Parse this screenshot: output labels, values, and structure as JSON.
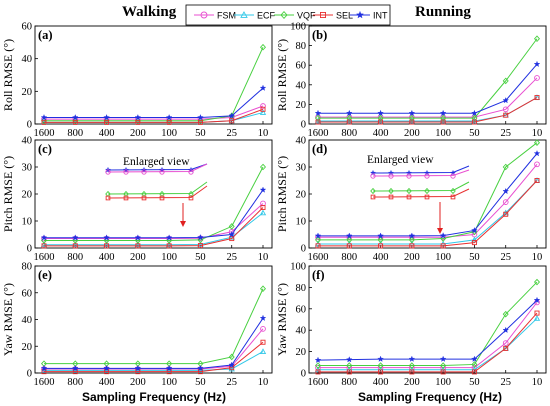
{
  "headers": {
    "left": "Walking",
    "right": "Running"
  },
  "legend": [
    {
      "name": "FSM",
      "color": "#e84fd0",
      "marker": "circle"
    },
    {
      "name": "ECF",
      "color": "#32c8e8",
      "marker": "triangle"
    },
    {
      "name": "VQF",
      "color": "#48d040",
      "marker": "diamond"
    },
    {
      "name": "SEL",
      "color": "#e83030",
      "marker": "square"
    },
    {
      "name": "INT",
      "color": "#2030e0",
      "marker": "star"
    }
  ],
  "xlabel": "Sampling Frequency (Hz)",
  "enlarged_view_label": "Enlarged view",
  "chart_data": [
    {
      "id": "a",
      "label": "(a)",
      "type": "line",
      "ylabel": "Roll RMSE (°)",
      "categories": [
        "1600",
        "800",
        "400",
        "200",
        "100",
        "50",
        "25",
        "10"
      ],
      "ylim": [
        0,
        60
      ],
      "yticks": [
        0,
        20,
        40,
        60
      ],
      "series": [
        {
          "name": "FSM",
          "values": [
            3,
            3,
            3,
            3,
            3,
            3,
            4,
            11
          ]
        },
        {
          "name": "ECF",
          "values": [
            1,
            1,
            1,
            1,
            1,
            1,
            2,
            7
          ]
        },
        {
          "name": "VQF",
          "values": [
            2,
            2,
            2,
            2,
            2,
            2,
            5,
            47
          ]
        },
        {
          "name": "SEL",
          "values": [
            1,
            1,
            1,
            1,
            1,
            1,
            2,
            9
          ]
        },
        {
          "name": "INT",
          "values": [
            4,
            4,
            4,
            4,
            4,
            4,
            5,
            22
          ]
        }
      ]
    },
    {
      "id": "b",
      "label": "(b)",
      "type": "line",
      "ylabel": "Roll RMSE (°)",
      "categories": [
        "1600",
        "800",
        "400",
        "200",
        "100",
        "50",
        "25",
        "10"
      ],
      "ylim": [
        0,
        100
      ],
      "yticks": [
        0,
        20,
        40,
        60,
        80,
        100
      ],
      "series": [
        {
          "name": "FSM",
          "values": [
            7,
            7,
            7,
            7,
            7,
            7,
            15,
            47
          ]
        },
        {
          "name": "ECF",
          "values": [
            3,
            3,
            3,
            3,
            3,
            3,
            9,
            27
          ]
        },
        {
          "name": "VQF",
          "values": [
            6,
            6,
            6,
            6,
            6,
            6,
            44,
            87
          ]
        },
        {
          "name": "SEL",
          "values": [
            2,
            2,
            2,
            2,
            2,
            2,
            9,
            27
          ]
        },
        {
          "name": "INT",
          "values": [
            11,
            11,
            11,
            11,
            11,
            11,
            24,
            61
          ]
        }
      ]
    },
    {
      "id": "c",
      "label": "(c)",
      "type": "line",
      "ylabel": "Pitch RMSE (°)",
      "categories": [
        "1600",
        "800",
        "400",
        "200",
        "100",
        "50",
        "25",
        "10"
      ],
      "ylim": [
        0,
        40
      ],
      "yticks": [
        0,
        10,
        20,
        30,
        40
      ],
      "series": [
        {
          "name": "FSM",
          "values": [
            3.5,
            3.5,
            3.5,
            3.5,
            3.5,
            3.6,
            6,
            16.5
          ]
        },
        {
          "name": "ECF",
          "values": [
            1.2,
            1.2,
            1.2,
            1.2,
            1.2,
            1.3,
            4,
            13
          ]
        },
        {
          "name": "VQF",
          "values": [
            2.8,
            2.8,
            2.8,
            2.8,
            2.8,
            3,
            8,
            30
          ]
        },
        {
          "name": "SEL",
          "values": [
            0.8,
            0.8,
            0.8,
            0.8,
            0.8,
            0.9,
            3.5,
            15
          ]
        },
        {
          "name": "INT",
          "values": [
            3.8,
            3.8,
            3.8,
            3.8,
            3.8,
            3.9,
            5,
            21.5
          ]
        }
      ]
    },
    {
      "id": "d",
      "label": "(d)",
      "type": "line",
      "ylabel": "Pitch RMSE (°)",
      "categories": [
        "1600",
        "800",
        "400",
        "200",
        "100",
        "50",
        "25",
        "10"
      ],
      "ylim": [
        0,
        40
      ],
      "yticks": [
        0,
        10,
        20,
        30,
        40
      ],
      "series": [
        {
          "name": "FSM",
          "values": [
            4,
            4,
            4,
            4,
            4,
            5,
            17,
            31
          ]
        },
        {
          "name": "ECF",
          "values": [
            1.5,
            1.5,
            1.5,
            1.5,
            1.5,
            3,
            13,
            25
          ]
        },
        {
          "name": "VQF",
          "values": [
            3,
            3,
            3,
            3,
            3.5,
            6,
            30,
            39
          ]
        },
        {
          "name": "SEL",
          "values": [
            0.8,
            0.8,
            0.8,
            0.8,
            0.8,
            2,
            12.5,
            25
          ]
        },
        {
          "name": "INT",
          "values": [
            4.5,
            4.5,
            4.5,
            4.5,
            4.6,
            6.5,
            21,
            35
          ]
        }
      ]
    },
    {
      "id": "e",
      "label": "(e)",
      "type": "line",
      "ylabel": "Yaw RMSE (°)",
      "categories": [
        "1600",
        "800",
        "400",
        "200",
        "100",
        "50",
        "25",
        "10"
      ],
      "ylim": [
        0,
        80
      ],
      "yticks": [
        0,
        20,
        40,
        60,
        80
      ],
      "series": [
        {
          "name": "FSM",
          "values": [
            3,
            3,
            3,
            3,
            3,
            3,
            5,
            33
          ]
        },
        {
          "name": "ECF",
          "values": [
            2,
            2,
            2,
            2,
            2,
            2,
            3,
            16
          ]
        },
        {
          "name": "VQF",
          "values": [
            7,
            7,
            7,
            7,
            7,
            7,
            12,
            63
          ]
        },
        {
          "name": "SEL",
          "values": [
            1,
            1,
            1,
            1,
            1,
            1,
            4,
            23
          ]
        },
        {
          "name": "INT",
          "values": [
            3.5,
            3.5,
            3.5,
            3.5,
            3.5,
            3.5,
            6,
            41
          ]
        }
      ]
    },
    {
      "id": "f",
      "label": "(f)",
      "type": "line",
      "ylabel": "Yaw RMSE (°)",
      "categories": [
        "1600",
        "800",
        "400",
        "200",
        "100",
        "50",
        "25",
        "10"
      ],
      "ylim": [
        0,
        100
      ],
      "yticks": [
        0,
        20,
        40,
        60,
        80,
        100
      ],
      "series": [
        {
          "name": "FSM",
          "values": [
            5,
            5,
            5,
            5,
            5,
            5,
            28,
            66
          ]
        },
        {
          "name": "ECF",
          "values": [
            3,
            3,
            3,
            3,
            3,
            3,
            23,
            51
          ]
        },
        {
          "name": "VQF",
          "values": [
            7,
            7,
            7,
            7,
            7,
            8,
            55,
            85
          ]
        },
        {
          "name": "SEL",
          "values": [
            1,
            1,
            1,
            1,
            1,
            1,
            23,
            56
          ]
        },
        {
          "name": "INT",
          "values": [
            12,
            12.5,
            13,
            13,
            13,
            13,
            40,
            68
          ]
        }
      ]
    }
  ]
}
